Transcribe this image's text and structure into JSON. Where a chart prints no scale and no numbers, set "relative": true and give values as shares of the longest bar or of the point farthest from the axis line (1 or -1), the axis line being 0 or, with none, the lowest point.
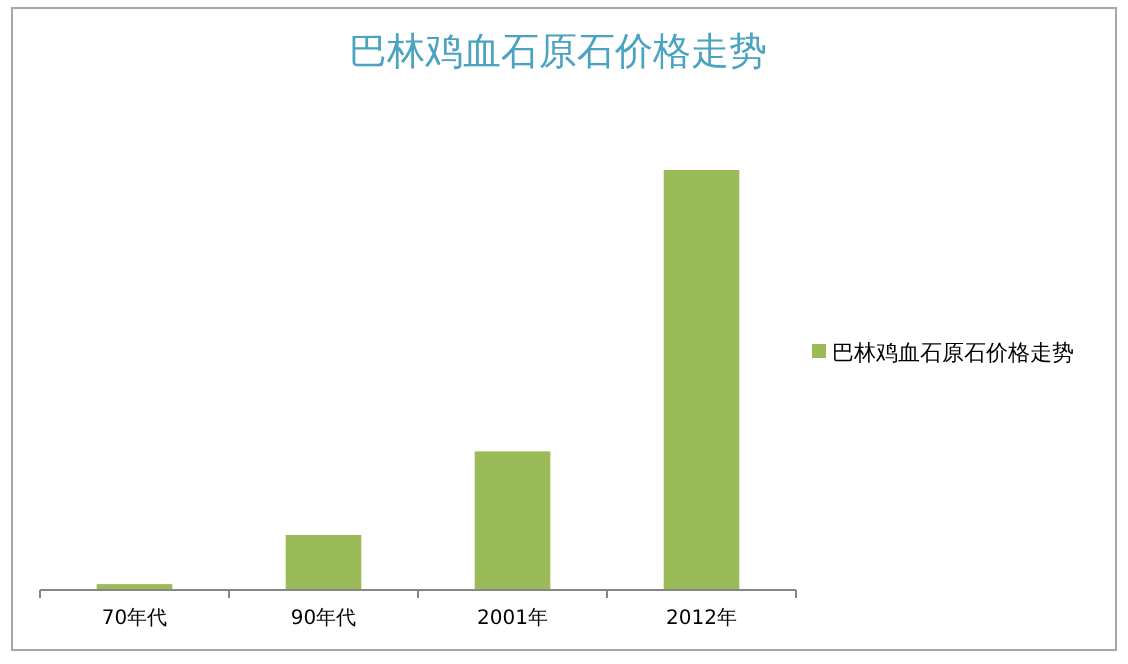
{
  "chart_data": {
    "type": "bar",
    "title": "巴林鸡血石原石价格走势",
    "relative": true,
    "categories": [
      "70年代",
      "90年代",
      "2001年",
      "2012年"
    ],
    "series": [
      {
        "name": "巴林鸡血石原石价格走势",
        "color": "#9bbb59",
        "values": [
          0.014,
          0.131,
          0.33,
          1
        ]
      }
    ],
    "legend": "right"
  }
}
